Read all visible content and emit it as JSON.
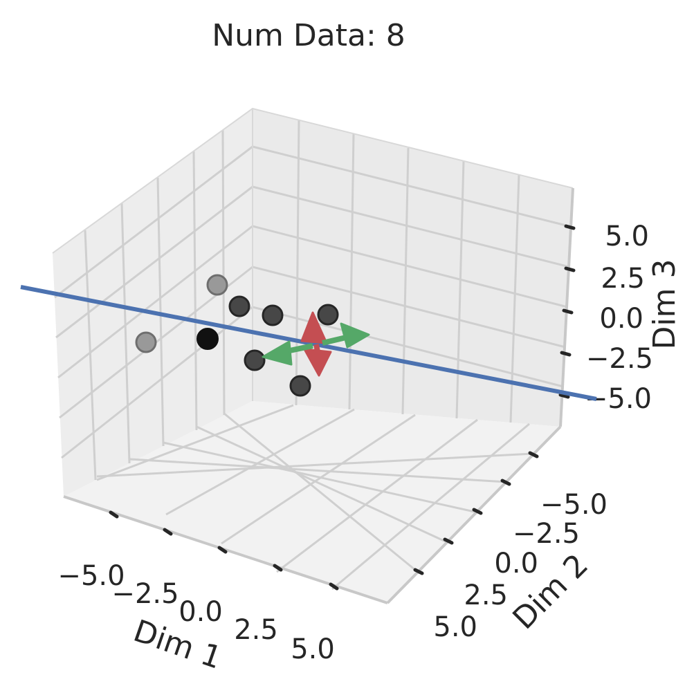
{
  "chart_data": {
    "type": "scatter3d",
    "title": "Num Data: 8",
    "xlabel": "Dim 1",
    "ylabel": "Dim 2",
    "zlabel": "Dim 3",
    "xticks": [
      "−5.0",
      "−2.5",
      "0.0",
      "2.5",
      "5.0"
    ],
    "yticks": [
      "−5.0",
      "−2.5",
      "0.0",
      "2.5",
      "5.0"
    ],
    "zticks": [
      "−5.0",
      "−2.5",
      "0.0",
      "2.5",
      "5.0"
    ],
    "grid": true,
    "colors": {
      "line": "#4c72b0",
      "arrow_red": "#c44e52",
      "arrow_green": "#55a868",
      "points": "#1a1a1a",
      "pane": "#f2f2f2"
    }
  }
}
